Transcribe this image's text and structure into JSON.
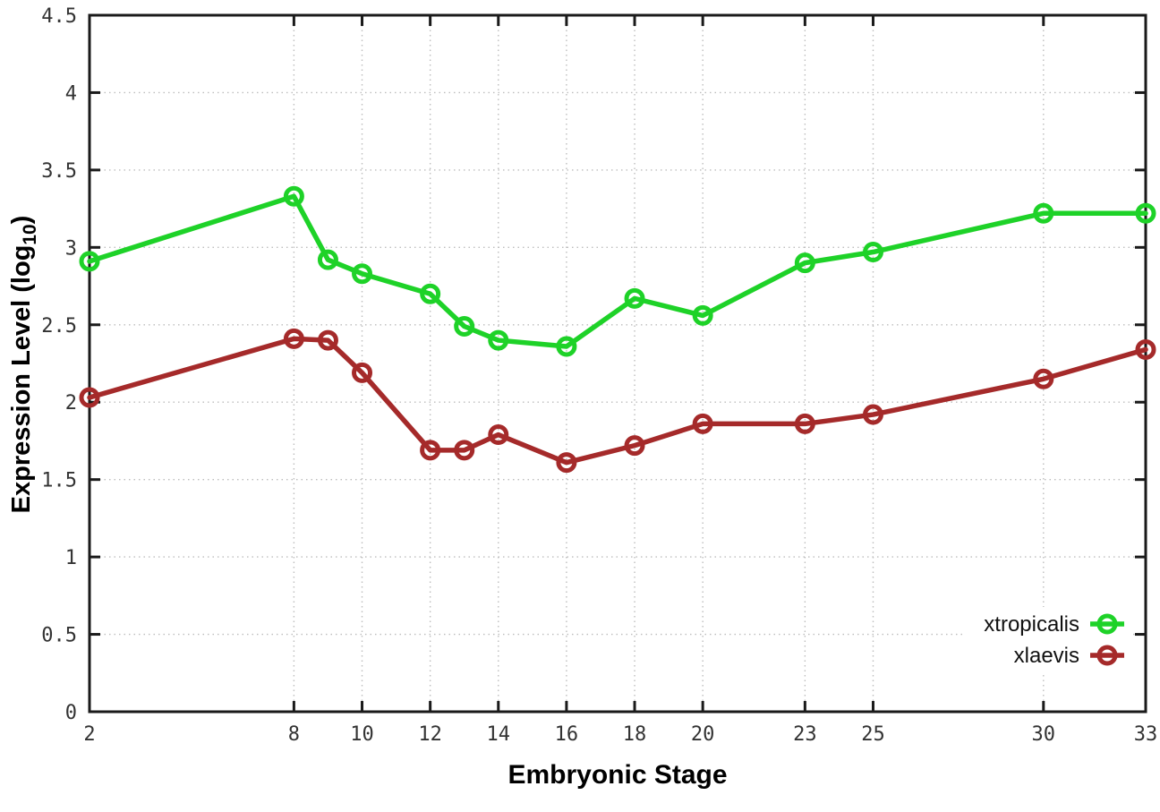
{
  "chart_data": {
    "type": "line",
    "title": "",
    "xlabel": "Embryonic Stage",
    "ylabel": "Expression Level (log10)",
    "ylabel_parts": {
      "pre": "Expression Level (log",
      "sub": "10",
      "post": ")"
    },
    "xlim": [
      2,
      33
    ],
    "ylim": [
      0,
      4.5
    ],
    "grid": true,
    "grid_style": "dotted",
    "legend_position": "inside-bottom-right",
    "x_ticks": [
      2,
      8,
      10,
      12,
      14,
      16,
      18,
      20,
      23,
      25,
      30,
      33
    ],
    "x_tick_labels": [
      "2",
      "8",
      "10",
      "12",
      "14",
      "16",
      "18",
      "20",
      "23",
      "25",
      "30",
      "33"
    ],
    "y_ticks": [
      0,
      0.5,
      1,
      1.5,
      2,
      2.5,
      3,
      3.5,
      4,
      4.5
    ],
    "y_tick_labels": [
      "0",
      "0.5",
      "1",
      "1.5",
      "2",
      "2.5",
      "3",
      "3.5",
      "4",
      "4.5"
    ],
    "x": [
      2,
      8,
      9,
      10,
      12,
      13,
      14,
      16,
      18,
      20,
      23,
      25,
      30,
      33
    ],
    "series": [
      {
        "name": "xtropicalis",
        "color": "#1ed228",
        "marker": "open-circle",
        "values": [
          2.91,
          3.33,
          2.92,
          2.83,
          2.7,
          2.49,
          2.4,
          2.36,
          2.67,
          2.56,
          2.9,
          2.97,
          3.22,
          3.22
        ]
      },
      {
        "name": "xlaevis",
        "color": "#a52a2a",
        "marker": "open-circle",
        "values": [
          2.03,
          2.41,
          2.4,
          2.19,
          1.69,
          1.69,
          1.79,
          1.61,
          1.72,
          1.86,
          1.86,
          1.92,
          2.15,
          2.34
        ]
      }
    ],
    "colors": {
      "background": "#ffffff",
      "axis": "#1a1a1a",
      "gridline": "#bdbdbd",
      "tick_label": "#333333"
    }
  }
}
